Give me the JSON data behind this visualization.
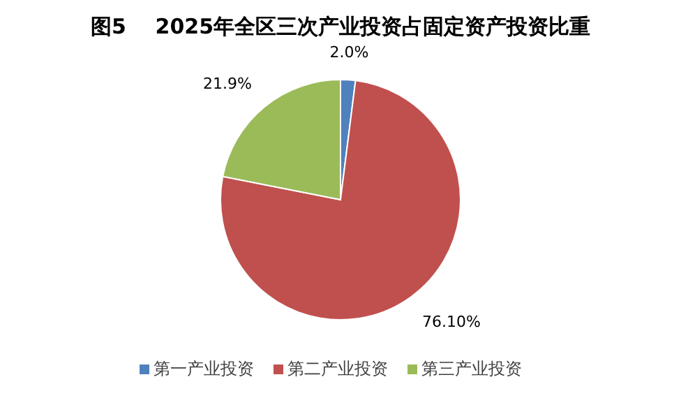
{
  "chart_data": {
    "type": "pie",
    "title": "图5    2025年全区三次产业投资占固定资产投资比重",
    "categories": [
      "第一产业投资",
      "第二产业投资",
      "第三产业投资"
    ],
    "values": [
      2.0,
      76.1,
      21.9
    ],
    "value_labels": [
      "2.0%",
      "76.10%",
      "21.9%"
    ],
    "colors": [
      "#4f81bd",
      "#c0504d",
      "#9bbb59"
    ],
    "legend": "bottom"
  }
}
